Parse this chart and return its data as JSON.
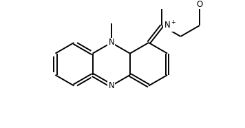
{
  "bg_color": "#ffffff",
  "bond_color": "#000000",
  "bond_width": 1.4,
  "text_color": "#000000",
  "font_size": 8.5,
  "fig_width": 3.56,
  "fig_height": 1.86,
  "dpi": 100,
  "xlim": [
    -0.3,
    5.8
  ],
  "ylim": [
    -1.6,
    2.8
  ]
}
